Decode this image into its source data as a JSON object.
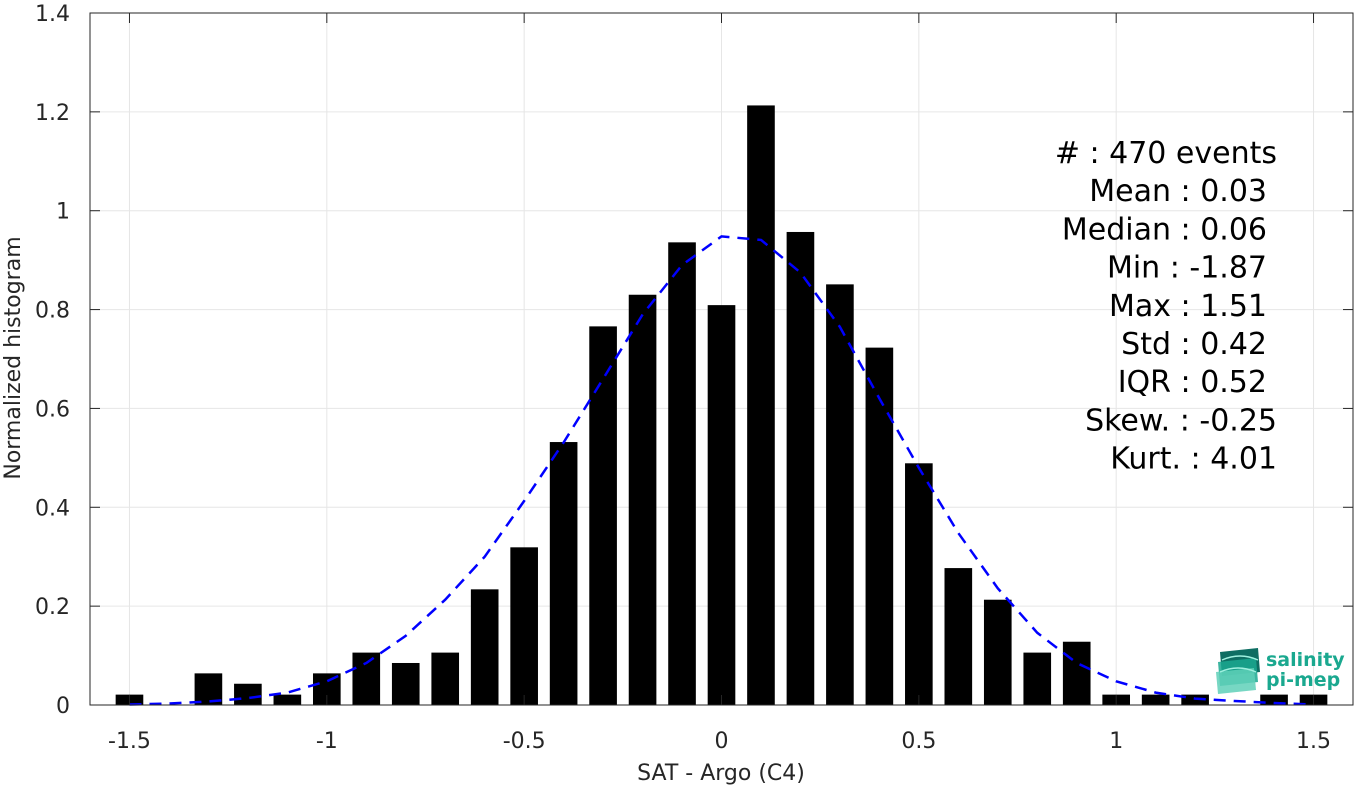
{
  "chart_data": {
    "type": "bar",
    "xlabel": "SAT - Argo (C4)",
    "ylabel": "Normalized histogram",
    "xlim": [
      -1.6,
      1.6
    ],
    "ylim": [
      0,
      1.4
    ],
    "xticks": [
      -1.5,
      -1,
      -0.5,
      0,
      0.5,
      1,
      1.5
    ],
    "xtick_labels": [
      "-1.5",
      "-1",
      "-0.5",
      "0",
      "0.5",
      "1",
      "1.5"
    ],
    "yticks": [
      0,
      0.2,
      0.4,
      0.6,
      0.8,
      1,
      1.2,
      1.4
    ],
    "ytick_labels": [
      "0",
      "0.2",
      "0.4",
      "0.6",
      "0.8",
      "1",
      "1.2",
      "1.4"
    ],
    "grid": true,
    "bin_width": 0.1,
    "bins": {
      "x": [
        -1.5,
        -1.3,
        -1.2,
        -1.1,
        -1.0,
        -0.9,
        -0.8,
        -0.7,
        -0.6,
        -0.5,
        -0.4,
        -0.3,
        -0.2,
        -0.1,
        0.0,
        0.1,
        0.2,
        0.3,
        0.4,
        0.5,
        0.6,
        0.7,
        0.8,
        0.9,
        1.0,
        1.1,
        1.2,
        1.4,
        1.5
      ],
      "values": [
        0.021,
        0.064,
        0.043,
        0.021,
        0.064,
        0.106,
        0.085,
        0.106,
        0.234,
        0.319,
        0.532,
        0.766,
        0.83,
        0.936,
        0.809,
        1.213,
        0.957,
        0.851,
        0.723,
        0.489,
        0.277,
        0.213,
        0.106,
        0.128,
        0.021,
        0.021,
        0.021,
        0.021,
        0.021
      ],
      "color": "#000000"
    },
    "fit_curve": {
      "style": "dashed",
      "color": "#0000ff",
      "x": [
        -1.5,
        -1.4,
        -1.3,
        -1.2,
        -1.1,
        -1.0,
        -0.9,
        -0.8,
        -0.7,
        -0.6,
        -0.5,
        -0.4,
        -0.3,
        -0.2,
        -0.1,
        0.0,
        0.1,
        0.2,
        0.3,
        0.4,
        0.5,
        0.6,
        0.7,
        0.8,
        0.9,
        1.0,
        1.1,
        1.2,
        1.3,
        1.4,
        1.5
      ],
      "y": [
        0.001,
        0.003,
        0.007,
        0.014,
        0.025,
        0.048,
        0.085,
        0.14,
        0.213,
        0.3,
        0.413,
        0.531,
        0.66,
        0.79,
        0.89,
        0.948,
        0.941,
        0.875,
        0.765,
        0.62,
        0.48,
        0.348,
        0.236,
        0.146,
        0.085,
        0.048,
        0.025,
        0.013,
        0.008,
        0.004,
        0.001
      ]
    },
    "annotations": [
      {
        "label": "#",
        "sep": ":",
        "value": "470 events"
      },
      {
        "label": "Mean",
        "sep": ":",
        "value": "0.03"
      },
      {
        "label": "Median",
        "sep": ":",
        "value": "0.06"
      },
      {
        "label": "Min",
        "sep": ":",
        "value": "-1.87"
      },
      {
        "label": "Max",
        "sep": ":",
        "value": "1.51"
      },
      {
        "label": "Std",
        "sep": ":",
        "value": "0.42"
      },
      {
        "label": "IQR",
        "sep": ":",
        "value": "0.52"
      },
      {
        "label": "Skew.",
        "sep": ":",
        "value": "-0.25"
      },
      {
        "label": "Kurt.",
        "sep": ":",
        "value": "4.01"
      }
    ]
  },
  "logo": {
    "line1": "salinity",
    "line2": "pi-mep",
    "icon_name": "wave-stack-icon",
    "color": "#1aa88f"
  }
}
